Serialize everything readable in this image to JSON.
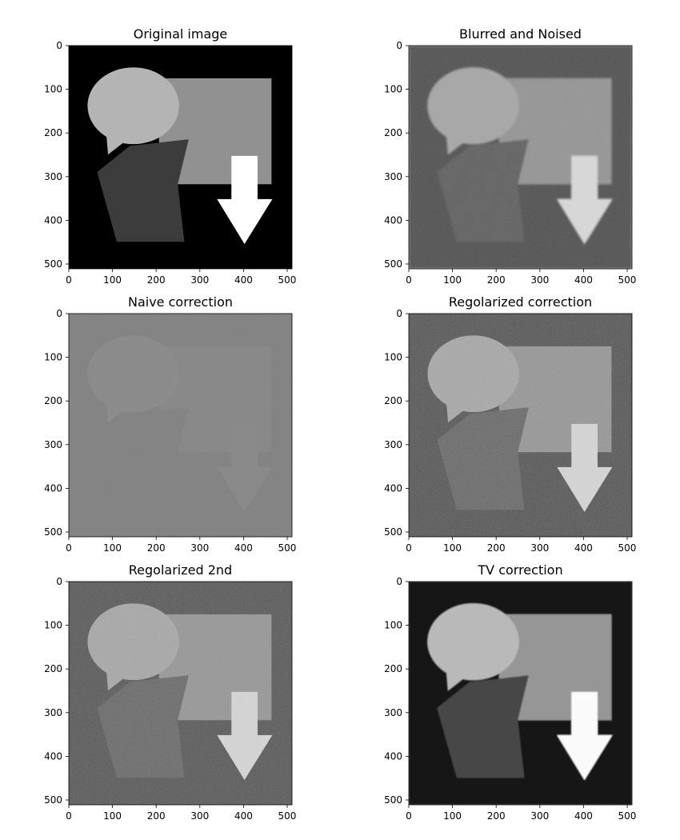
{
  "chart_data": [
    {
      "type": "image",
      "title": "Original image",
      "style": "clean",
      "background_gray": 0,
      "xticks": [
        0,
        100,
        200,
        300,
        400,
        500
      ],
      "yticks": [
        0,
        100,
        200,
        300,
        400,
        500
      ],
      "xlim": [
        0,
        511
      ],
      "ylim": [
        511,
        0
      ]
    },
    {
      "type": "image",
      "title": "Blurred and Noised",
      "style": "blurred-noisy",
      "background_gray": 55,
      "xticks": [
        0,
        100,
        200,
        300,
        400,
        500
      ],
      "yticks": [
        0,
        100,
        200,
        300,
        400,
        500
      ],
      "xlim": [
        0,
        511
      ],
      "ylim": [
        511,
        0
      ]
    },
    {
      "type": "image",
      "title": "Naive correction",
      "style": "flat-gray",
      "background_gray": 128,
      "xticks": [
        0,
        100,
        200,
        300,
        400,
        500
      ],
      "yticks": [
        0,
        100,
        200,
        300,
        400,
        500
      ],
      "xlim": [
        0,
        511
      ],
      "ylim": [
        511,
        0
      ]
    },
    {
      "type": "image",
      "title": "Regolarized correction",
      "style": "noisy",
      "background_gray": 45,
      "xticks": [
        0,
        100,
        200,
        300,
        400,
        500
      ],
      "yticks": [
        0,
        100,
        200,
        300,
        400,
        500
      ],
      "xlim": [
        0,
        511
      ],
      "ylim": [
        511,
        0
      ]
    },
    {
      "type": "image",
      "title": "Regolarized 2nd",
      "style": "noisy",
      "background_gray": 48,
      "xticks": [
        0,
        100,
        200,
        300,
        400,
        500
      ],
      "yticks": [
        0,
        100,
        200,
        300,
        400,
        500
      ],
      "xlim": [
        0,
        511
      ],
      "ylim": [
        511,
        0
      ]
    },
    {
      "type": "image",
      "title": "TV correction",
      "style": "smooth",
      "background_gray": 25,
      "xticks": [
        0,
        100,
        200,
        300,
        400,
        500
      ],
      "yticks": [
        0,
        100,
        200,
        300,
        400,
        500
      ],
      "xlim": [
        0,
        511
      ],
      "ylim": [
        511,
        0
      ]
    }
  ]
}
